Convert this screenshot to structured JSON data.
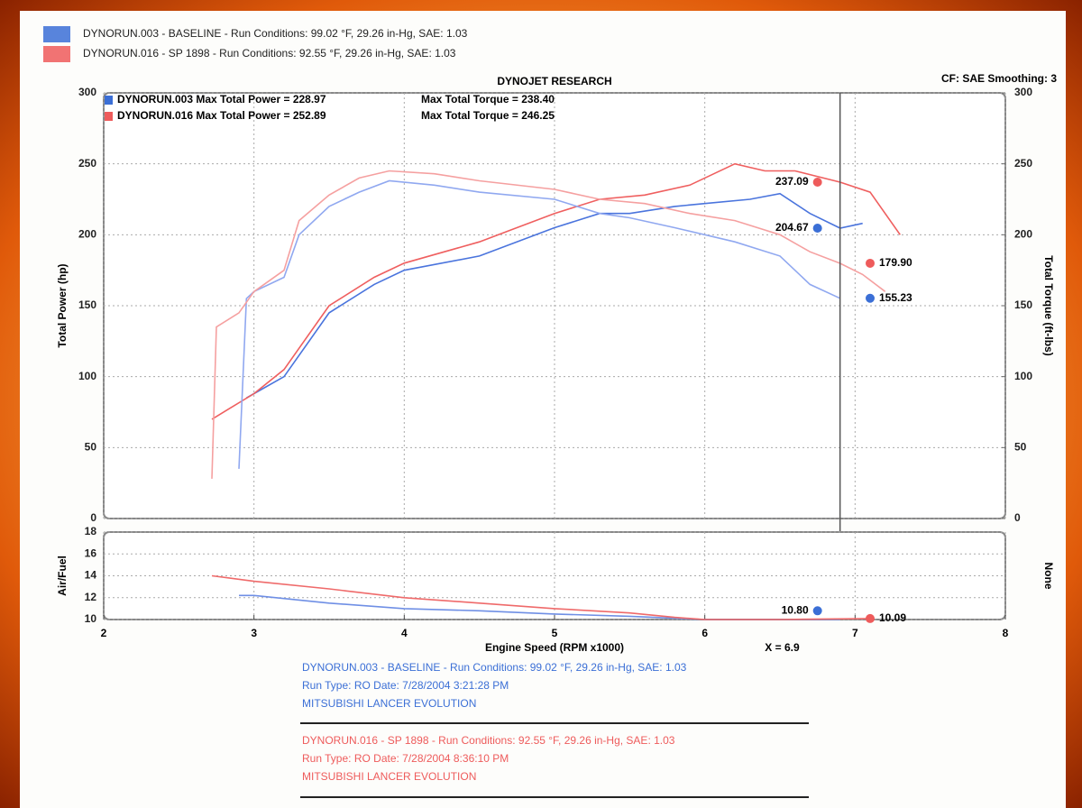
{
  "legend": [
    {
      "label": "DYNORUN.003 - BASELINE  -  Run Conditions: 99.02 °F, 29.26 in-Hg, SAE: 1.03",
      "color": "#3b6fd6"
    },
    {
      "label": "DYNORUN.016 - SP 1898  -  Run Conditions: 92.55 °F, 29.26 in-Hg, SAE: 1.03",
      "color": "#ee5b5b"
    }
  ],
  "chart_data": [
    {
      "type": "line",
      "title": "DYNOJET RESEARCH",
      "subtitle": "CF: SAE  Smoothing: 3",
      "ylabel": "Total Power (hp)",
      "y2label": "Total Torque (ft-lbs)",
      "xlim": [
        2,
        8
      ],
      "ylim": [
        0,
        300
      ],
      "yticks": [
        0,
        50,
        100,
        150,
        200,
        250,
        300
      ],
      "y2lim": [
        0,
        300
      ],
      "y2ticks": [
        0,
        50,
        100,
        150,
        200,
        250,
        300
      ],
      "grid": true,
      "annotations": [
        {
          "texts": [
            "DYNORUN.003 Max Total Power = 228.97",
            "Max Total Torque = 238.40"
          ],
          "color": "#3b6fd6"
        },
        {
          "texts": [
            "DYNORUN.016 Max Total Power = 252.89",
            "Max Total Torque = 246.25"
          ],
          "color": "#ee5b5b"
        }
      ],
      "cursor": {
        "x": 6.9,
        "label": "X = 6.9"
      },
      "series": [
        {
          "color": "#4a74dd",
          "x": [
            2.95,
            3.0,
            3.2,
            3.5,
            3.8,
            4.0,
            4.5,
            5.0,
            5.3,
            5.5,
            5.8,
            6.0,
            6.3,
            6.5,
            6.7,
            6.9,
            7.05
          ],
          "values": [
            85,
            88,
            100,
            145,
            165,
            175,
            185,
            205,
            215,
            215,
            220,
            222,
            225,
            229,
            215,
            204.67,
            208
          ]
        },
        {
          "color": "#ef5f5f",
          "x": [
            2.72,
            3.0,
            3.2,
            3.5,
            3.8,
            4.0,
            4.5,
            5.0,
            5.3,
            5.6,
            5.9,
            6.2,
            6.4,
            6.6,
            6.9,
            7.1,
            7.3
          ],
          "values": [
            70,
            88,
            105,
            150,
            170,
            180,
            195,
            215,
            225,
            228,
            235,
            250,
            245,
            245,
            237.09,
            230,
            200
          ]
        },
        {
          "color": "#90a8f0",
          "axis": "y2",
          "x": [
            2.9,
            2.95,
            3.0,
            3.2,
            3.3,
            3.5,
            3.7,
            3.9,
            4.2,
            4.5,
            5.0,
            5.3,
            5.5,
            5.8,
            6.2,
            6.5,
            6.7,
            6.9
          ],
          "values": [
            35,
            155,
            160,
            170,
            200,
            220,
            230,
            238,
            235,
            230,
            225,
            215,
            212,
            205,
            195,
            185,
            165,
            155.23
          ]
        },
        {
          "color": "#f5a0a0",
          "axis": "y2",
          "x": [
            2.72,
            2.75,
            2.9,
            3.0,
            3.2,
            3.3,
            3.5,
            3.7,
            3.9,
            4.2,
            4.5,
            5.0,
            5.3,
            5.6,
            5.9,
            6.2,
            6.5,
            6.7,
            6.9,
            7.05,
            7.2
          ],
          "values": [
            28,
            135,
            145,
            160,
            175,
            210,
            228,
            240,
            245,
            243,
            238,
            232,
            225,
            222,
            215,
            210,
            200,
            188,
            179.9,
            172,
            160
          ]
        }
      ],
      "markers": [
        {
          "x": 6.75,
          "value": 237.09,
          "color": "#ee5b5b"
        },
        {
          "x": 6.75,
          "value": 204.67,
          "color": "#3b6fd6"
        },
        {
          "x": 7.1,
          "value": 179.9,
          "label": "179.90",
          "color": "#ee5b5b"
        },
        {
          "x": 7.1,
          "value": 155.23,
          "color": "#3b6fd6"
        }
      ]
    },
    {
      "type": "line",
      "ylabel": "Air/Fuel",
      "y2label": "None",
      "xlabel": "Engine Speed (RPM x1000)",
      "xlim": [
        2,
        8
      ],
      "xticks": [
        2,
        3,
        4,
        5,
        6,
        7,
        8
      ],
      "ylim": [
        10,
        18
      ],
      "yticks": [
        10,
        12,
        14,
        16,
        18
      ],
      "grid": true,
      "series": [
        {
          "color": "#6f8fe5",
          "x": [
            2.9,
            3.0,
            3.5,
            4.0,
            4.5,
            5.0,
            5.5,
            6.0,
            6.5,
            6.9
          ],
          "values": [
            12.2,
            12.2,
            11.5,
            11.0,
            10.8,
            10.5,
            10.3,
            10.0,
            10.0,
            10.0
          ]
        },
        {
          "color": "#ef6a6a",
          "x": [
            2.72,
            3.0,
            3.5,
            4.0,
            4.5,
            5.0,
            5.5,
            5.8,
            6.0,
            6.5,
            7.1
          ],
          "values": [
            14,
            13.5,
            12.8,
            12.0,
            11.5,
            11.0,
            10.6,
            10.2,
            10.0,
            10.0,
            10.09
          ]
        }
      ],
      "markers": [
        {
          "x": 6.75,
          "value": 10.8,
          "label": "10.80",
          "color": "#3b6fd6"
        },
        {
          "x": 7.1,
          "value": 10.09,
          "color": "#ee5b5b"
        }
      ]
    }
  ],
  "footer": {
    "runs": [
      {
        "color": "#3b6fd6",
        "lines": [
          "DYNORUN.003 - BASELINE  -  Run Conditions: 99.02 °F, 29.26 in-Hg, SAE: 1.03",
          "Run Type: RO  Date: 7/28/2004 3:21:28 PM",
          "MITSUBISHI LANCER EVOLUTION"
        ]
      },
      {
        "color": "#ee5b5b",
        "lines": [
          "DYNORUN.016 - SP 1898  -  Run Conditions: 92.55 °F, 29.26 in-Hg, SAE: 1.03",
          "Run Type: RO  Date: 7/28/2004 8:36:10 PM",
          "MITSUBISHI LANCER EVOLUTION"
        ]
      }
    ]
  }
}
